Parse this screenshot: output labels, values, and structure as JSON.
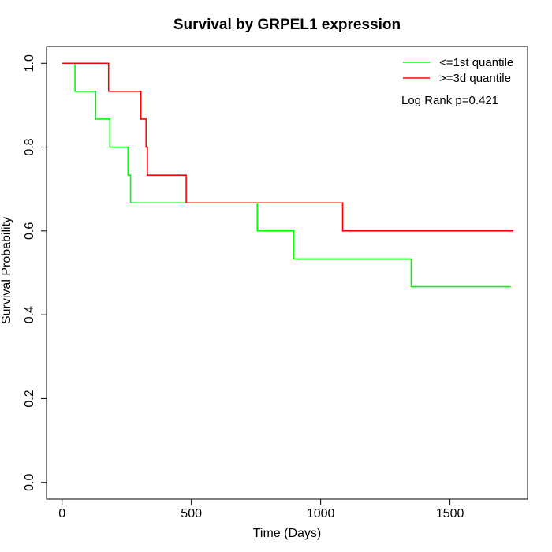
{
  "chart_data": {
    "type": "line",
    "title": "Survival by GRPEL1 expression",
    "xlabel": "Time (Days)",
    "ylabel": "Survival Probability",
    "xlim": [
      -60,
      1800
    ],
    "ylim": [
      -0.04,
      1.04
    ],
    "x_ticks": [
      0,
      500,
      1000,
      1500
    ],
    "x_tick_labels": [
      "0",
      "500",
      "1000",
      "1500"
    ],
    "y_ticks": [
      0,
      0.2,
      0.4,
      0.6,
      0.8,
      1.0
    ],
    "y_tick_labels": [
      "0.0",
      "0.2",
      "0.4",
      "0.6",
      "0.8",
      "1.0"
    ],
    "grid": false,
    "legend_position": "top-right",
    "annotation": "Log Rank p=0.421",
    "series": [
      {
        "name": "<=1st quantile",
        "color": "#00ff00",
        "step": true,
        "x": [
          0,
          50,
          130,
          185,
          255,
          265,
          755,
          895,
          1350,
          1735
        ],
        "y": [
          1.0,
          0.933,
          0.867,
          0.8,
          0.733,
          0.667,
          0.6,
          0.533,
          0.467,
          0.467
        ]
      },
      {
        "name": ">=3d quantile",
        "color": "#ff0000",
        "step": true,
        "x": [
          0,
          180,
          305,
          325,
          330,
          480,
          1085,
          1745
        ],
        "y": [
          1.0,
          0.933,
          0.867,
          0.8,
          0.733,
          0.667,
          0.6,
          0.6
        ]
      }
    ]
  }
}
